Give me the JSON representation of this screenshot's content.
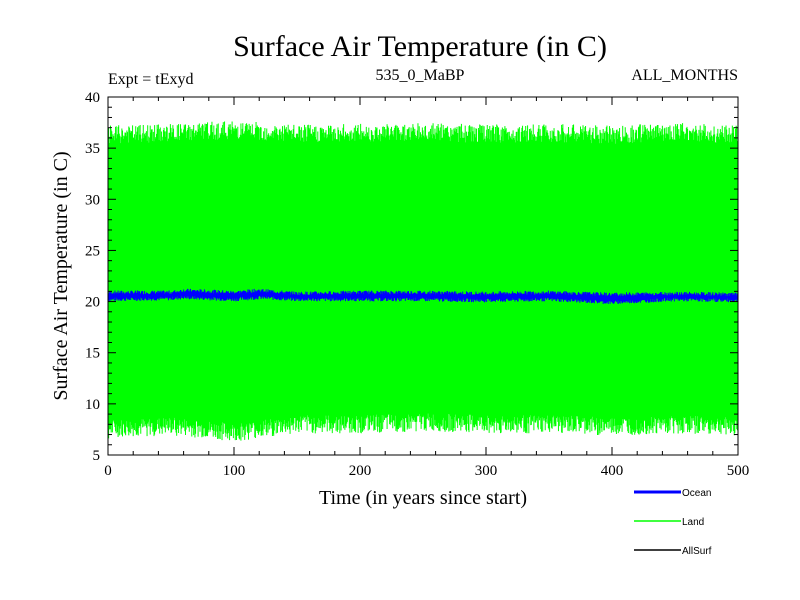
{
  "chart_data": {
    "type": "line",
    "title": "Surface Air Temperature (in C)",
    "subtitle_left": "Expt = tExyd",
    "subtitle_center": "535_0_MaBP",
    "subtitle_right": "ALL_MONTHS",
    "xlabel": "Time (in years since start)",
    "ylabel": "Surface Air Temperature (in C)",
    "xlim": [
      0,
      500
    ],
    "ylim": [
      5,
      40
    ],
    "xticks": [
      0,
      100,
      200,
      300,
      400,
      500
    ],
    "yticks": [
      5,
      10,
      15,
      20,
      25,
      30,
      35,
      40
    ],
    "grid": false,
    "legend_position": "bottom-right",
    "series": [
      {
        "name": "Ocean",
        "color": "#0000ff",
        "style": "seasonal band",
        "x": [
          0,
          50,
          60,
          100,
          120,
          150,
          200,
          250,
          300,
          350,
          400,
          450,
          500
        ],
        "lower": [
          20.2,
          20.3,
          20.4,
          20.2,
          20.4,
          20.2,
          20.2,
          20.2,
          20.1,
          20.2,
          19.9,
          20.2,
          20.1
        ],
        "upper": [
          20.9,
          20.9,
          21.1,
          20.9,
          21.1,
          20.8,
          20.9,
          20.9,
          20.8,
          20.9,
          20.7,
          20.8,
          20.7
        ]
      },
      {
        "name": "Land",
        "color": "#00ff00",
        "style": "seasonal band",
        "x": [
          0,
          50,
          100,
          150,
          200,
          250,
          300,
          350,
          400,
          450,
          500
        ],
        "lower": [
          7.5,
          7.8,
          7.2,
          8.0,
          8.0,
          8.2,
          8.0,
          8.0,
          7.8,
          8.0,
          7.8
        ],
        "upper": [
          36.3,
          36.5,
          36.8,
          36.4,
          36.5,
          36.6,
          36.4,
          36.5,
          36.3,
          36.6,
          36.3
        ]
      },
      {
        "name": "AllSurf",
        "color": "#000000",
        "style": "line",
        "x": [],
        "y": []
      }
    ]
  }
}
